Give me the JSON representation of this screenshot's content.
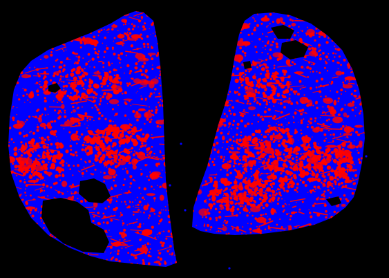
{
  "image": {
    "background_color": "#000000",
    "tissue_color": "#0000ff",
    "stain_color": "#ff0000",
    "sections": [
      {
        "name": "left-tissue-section",
        "holes": 3
      },
      {
        "name": "right-tissue-section",
        "holes": 4
      }
    ]
  }
}
